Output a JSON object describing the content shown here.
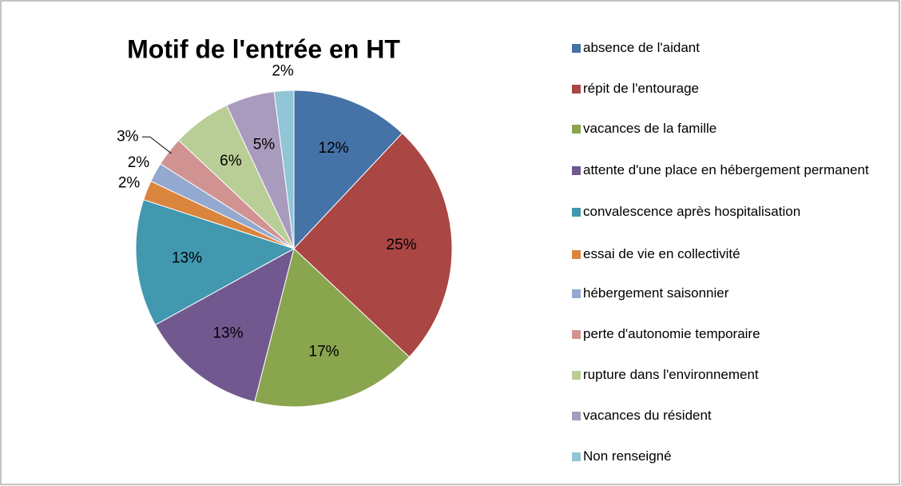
{
  "chart_data": {
    "type": "pie",
    "title": "Motif de l'entrée en HT",
    "categories": [
      "absence de l'aidant",
      "répit de l'entourage",
      "vacances de la famille",
      "attente d'une place en hébergement permanent",
      "convalescence après hospitalisation",
      "essai de vie en collectivité",
      "hébergement  saisonnier",
      "perte d'autonomie temporaire",
      "rupture dans l'environnement",
      "vacances du résident",
      "Non renseigné"
    ],
    "values": [
      12,
      25,
      17,
      13,
      13,
      2,
      2,
      3,
      6,
      5,
      2
    ],
    "value_labels": [
      "12%",
      "25%",
      "17%",
      "13%",
      "13%",
      "2%",
      "2%",
      "3%",
      "6%",
      "5%",
      "2%"
    ],
    "colors": [
      "#4572a7",
      "#aa4643",
      "#89a54e",
      "#71588f",
      "#4198af",
      "#db843d",
      "#93a9cf",
      "#d19392",
      "#b9cd96",
      "#a99bbd",
      "#92c5d6"
    ],
    "legend": "right"
  }
}
